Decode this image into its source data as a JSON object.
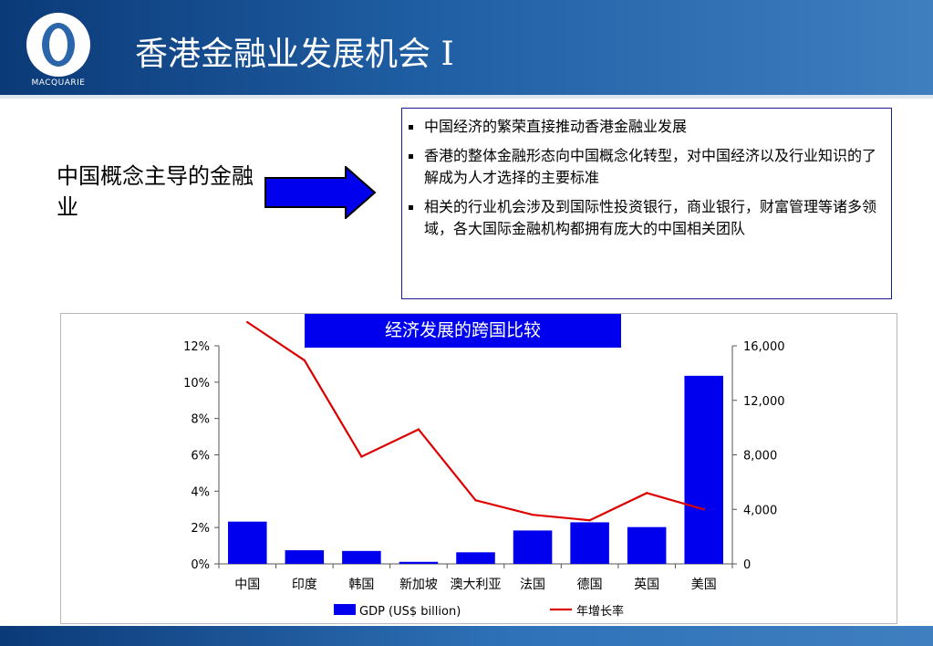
{
  "header": {
    "title": "香港金融业发展机会 I",
    "logo_text": "MACQUARIE"
  },
  "concept_label": "中国概念主导的金融业",
  "bullets": [
    "中国经济的繁荣直接推动香港金融业发展",
    "香港的整体金融形态向中国概念化转型，对中国经济以及行业知识的了解成为人才选择的主要标准",
    "相关的行业机会涉及到国际性投资银行，商业银行，财富管理等诸多领域，各大国际金融机构都拥有庞大的中国相关团队"
  ],
  "colors": {
    "header": "#1f5ea3",
    "bar": "#0000ee",
    "line": "#dd0000",
    "title_box": "#0000ee"
  },
  "chart_data": {
    "type": "bar",
    "title": "经济发展的跨国比较",
    "categories": [
      "中国",
      "印度",
      "韩国",
      "新加坡",
      "澳大利亚",
      "法国",
      "德国",
      "英国",
      "美国"
    ],
    "series": [
      {
        "name": "GDP (US$ billion)",
        "type": "bar",
        "axis": "right",
        "values": [
          3100,
          1000,
          950,
          150,
          850,
          2450,
          3050,
          2700,
          13800
        ]
      },
      {
        "name": "年增长率",
        "type": "line",
        "axis": "left",
        "values": [
          0.133,
          0.112,
          0.059,
          0.074,
          0.035,
          0.027,
          0.024,
          0.039,
          0.03
        ]
      }
    ],
    "left_axis": {
      "ylim": [
        0,
        0.12
      ],
      "ticks": [
        "0%",
        "2%",
        "4%",
        "6%",
        "8%",
        "10%",
        "12%"
      ]
    },
    "right_axis": {
      "ylim": [
        0,
        16000
      ],
      "ticks": [
        "0",
        "4,000",
        "8,000",
        "12,000",
        "16,000"
      ]
    },
    "legend_position": "bottom"
  }
}
